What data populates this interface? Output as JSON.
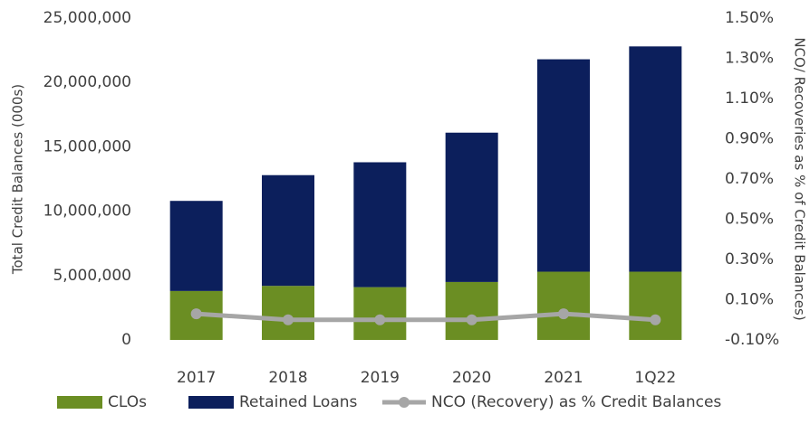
{
  "chart_data": {
    "type": "bar",
    "y_label": "Total Credit Balances (000s)",
    "y2_label": "NCO/ Recoveries as % of Credit Balances)",
    "categories": [
      "2017",
      "2018",
      "2019",
      "2020",
      "2021",
      "1Q22"
    ],
    "series": [
      {
        "name": "CLOs",
        "color": "#6b8e23",
        "values": [
          3800000,
          4200000,
          4100000,
          4500000,
          5300000,
          5300000
        ]
      },
      {
        "name": "Retained Loans",
        "color": "#0c1f5c",
        "values": [
          7000000,
          8600000,
          9700000,
          11600000,
          16500000,
          17500000
        ]
      },
      {
        "name": "NCO (Recovery) as % Credit Balances",
        "color": "#a6a6a6",
        "type": "line",
        "axis": "y2",
        "values": [
          0.03,
          0.0,
          0.0,
          0.0,
          0.03,
          0.0
        ]
      }
    ],
    "stacked": true,
    "ylim": [
      0,
      25000000
    ],
    "yticks": [
      0,
      {
        "value": 5000000,
        "label": "5,000,000"
      },
      {
        "value": 10000000,
        "label": "10,000,000"
      },
      {
        "value": 15000000,
        "label": "15,000,000"
      },
      {
        "value": 20000000,
        "label": "20,000,000"
      },
      {
        "value": 25000000,
        "label": "25,000,000"
      }
    ],
    "y2lim": [
      -0.1,
      1.5
    ],
    "y2ticks": [
      {
        "value": -0.1,
        "label": "-0.10%"
      },
      {
        "value": 0.1,
        "label": "0.10%"
      },
      {
        "value": 0.3,
        "label": "0.30%"
      },
      {
        "value": 0.5,
        "label": "0.50%"
      },
      {
        "value": 0.7,
        "label": "0.70%"
      },
      {
        "value": 0.9,
        "label": "0.90%"
      },
      {
        "value": 1.1,
        "label": "1.10%"
      },
      {
        "value": 1.3,
        "label": "1.30%"
      },
      {
        "value": 1.5,
        "label": "1.50%"
      }
    ],
    "legend": "bottom"
  }
}
